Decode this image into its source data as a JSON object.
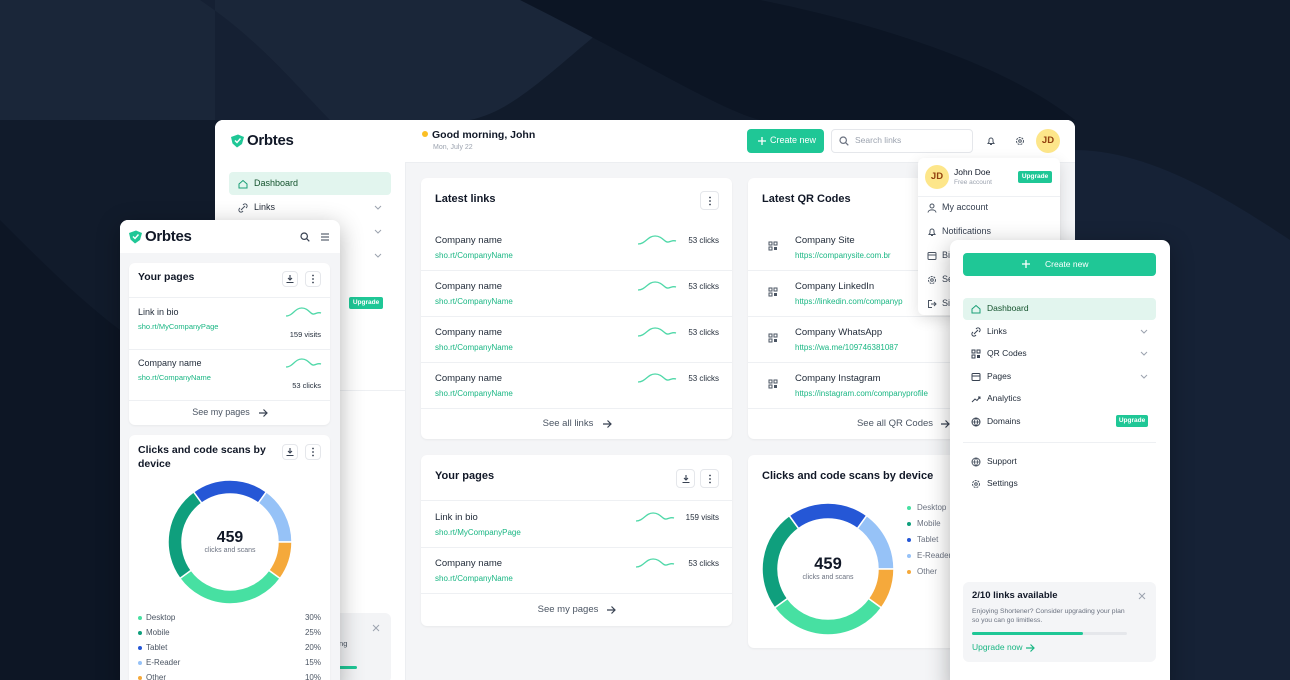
{
  "brand": "Orbtes",
  "header": {
    "greeting": "Good morning, John",
    "date": "Mon, July 22",
    "create": "Create new",
    "search_placeholder": "Search links",
    "avatar": "JD"
  },
  "profile_menu": {
    "initials": "JD",
    "name": "John Doe",
    "plan": "Free account",
    "upgrade": "Upgrade",
    "items": [
      "My account",
      "Notifications",
      "Bi",
      "Se",
      "Si"
    ]
  },
  "main_sidebar": {
    "items": [
      "Dashboard",
      "Links"
    ],
    "upgrade": "Upgrade",
    "card_fragments": [
      "upgrading",
      "s."
    ]
  },
  "latest_links": {
    "title": "Latest links",
    "rows": [
      {
        "name": "Company name",
        "url": "sho.rt/CompanyName",
        "clicks": "53 clicks"
      },
      {
        "name": "Company name",
        "url": "sho.rt/CompanyName",
        "clicks": "53 clicks"
      },
      {
        "name": "Company name",
        "url": "sho.rt/CompanyName",
        "clicks": "53 clicks"
      },
      {
        "name": "Company name",
        "url": "sho.rt/CompanyName",
        "clicks": "53 clicks"
      }
    ],
    "footer": "See all links"
  },
  "latest_qr": {
    "title": "Latest QR Codes",
    "rows": [
      {
        "name": "Company Site",
        "url": "https://companysite.com.br"
      },
      {
        "name": "Company LinkedIn",
        "url": "https://linkedin.com/companyp"
      },
      {
        "name": "Company WhatsApp",
        "url": "https://wa.me/109746381087"
      },
      {
        "name": "Company Instagram",
        "url": "https://instagram.com/companyprofile"
      }
    ],
    "footer": "See all QR Codes"
  },
  "your_pages": {
    "title": "Your pages",
    "rows": [
      {
        "name": "Link in bio",
        "url": "sho.rt/MyCompanyPage",
        "stat": "159 visits"
      },
      {
        "name": "Company name",
        "url": "sho.rt/CompanyName",
        "stat": "53 clicks"
      }
    ],
    "footer": "See my pages"
  },
  "device_chart": {
    "type": "pie",
    "title": "Clicks and code scans by device",
    "total": "459",
    "total_label": "clicks and scans",
    "categories": [
      "Desktop",
      "Mobile",
      "Tablet",
      "E-Reader",
      "Other"
    ],
    "colors": [
      "#47e0a2",
      "#0f9f7d",
      "#2557d6",
      "#96c2f7",
      "#f5a93b"
    ],
    "values": [
      30,
      25,
      20,
      15,
      10
    ],
    "value_labels": [
      "30%",
      "25%",
      "20%",
      "15%",
      "10%"
    ]
  },
  "right_panel": {
    "create": "Create new",
    "nav": [
      "Dashboard",
      "Links",
      "QR Codes",
      "Pages",
      "Analytics",
      "Domains"
    ],
    "upgrade": "Upgrade",
    "secondary": [
      "Support",
      "Settings"
    ],
    "promo": {
      "title": "2/10 links available",
      "text": "Enjoying Shortener? Consider upgrading your plan so you can go limitless.",
      "action": "Upgrade now"
    }
  }
}
